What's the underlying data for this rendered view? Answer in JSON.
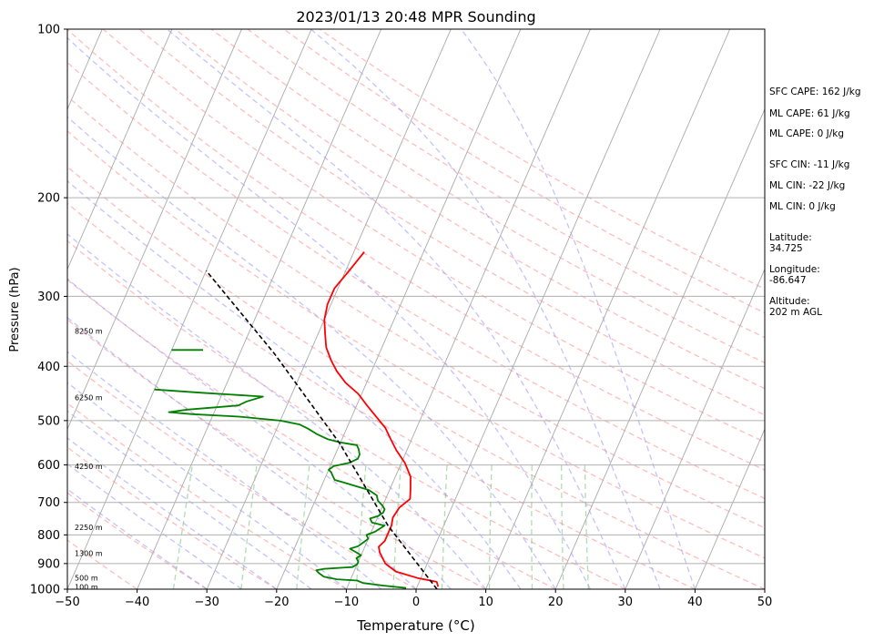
{
  "chart_data": {
    "type": "line",
    "title": "2023/01/13 20:48 MPR Sounding",
    "xlabel": "Temperature (°C)",
    "ylabel": "Pressure (hPa)",
    "xlim": [
      -50,
      50
    ],
    "ylim": [
      1000,
      100
    ],
    "y_scale": "log",
    "xticks": [
      "−50",
      "−40",
      "−30",
      "−20",
      "−10",
      "0",
      "10",
      "20",
      "30",
      "40",
      "50"
    ],
    "yticks": [
      "100",
      "200",
      "300",
      "400",
      "500",
      "600",
      "700",
      "800",
      "900",
      "1000"
    ],
    "height_labels": [
      {
        "p": 990,
        "text": "100 m"
      },
      {
        "p": 955,
        "text": "500 m"
      },
      {
        "p": 862,
        "text": "1300 m"
      },
      {
        "p": 775,
        "text": "2250 m"
      },
      {
        "p": 603,
        "text": "4250 m"
      },
      {
        "p": 455,
        "text": "6250 m"
      },
      {
        "p": 346,
        "text": "8250 m"
      }
    ],
    "series": [
      {
        "color": "#ff0000",
        "points": [
          [
            3.0,
            990
          ],
          [
            2.5,
            970
          ],
          [
            -0.5,
            955
          ],
          [
            -4.0,
            930
          ],
          [
            -6.0,
            900
          ],
          [
            -7.5,
            860
          ],
          [
            -8.0,
            840
          ],
          [
            -7.5,
            820
          ],
          [
            -7.5,
            790
          ],
          [
            -7.5,
            770
          ],
          [
            -7.8,
            745
          ],
          [
            -7.5,
            715
          ],
          [
            -6.5,
            690
          ],
          [
            -7.0,
            665
          ],
          [
            -7.8,
            630
          ],
          [
            -9.5,
            595
          ],
          [
            -11.5,
            565
          ],
          [
            -13.0,
            540
          ],
          [
            -14.5,
            515
          ],
          [
            -16.5,
            492
          ],
          [
            -18.5,
            470
          ],
          [
            -20.5,
            448
          ],
          [
            -23.0,
            428
          ],
          [
            -25.0,
            408
          ],
          [
            -26.5,
            390
          ],
          [
            -28.0,
            370
          ],
          [
            -29.0,
            350
          ],
          [
            -30.0,
            330
          ],
          [
            -30.5,
            310
          ],
          [
            -30.5,
            290
          ],
          [
            -29.5,
            270
          ],
          [
            -28.5,
            250
          ]
        ]
      },
      {
        "color": "#008000",
        "points": [
          [
            -1.5,
            995
          ],
          [
            -5.0,
            985
          ],
          [
            -8.0,
            975
          ],
          [
            -9.0,
            965
          ],
          [
            -12.0,
            960
          ],
          [
            -14.0,
            950
          ],
          [
            -15.0,
            935
          ],
          [
            -15.5,
            925
          ],
          [
            -14.5,
            920
          ],
          [
            -10.5,
            913
          ],
          [
            -10.0,
            903
          ],
          [
            -10.0,
            893
          ],
          [
            -10.5,
            880
          ],
          [
            -10.0,
            870
          ],
          [
            -11.0,
            858
          ],
          [
            -12.0,
            847
          ],
          [
            -11.0,
            838
          ],
          [
            -10.5,
            826
          ],
          [
            -10.0,
            813
          ],
          [
            -10.5,
            800
          ],
          [
            -9.5,
            790
          ],
          [
            -9.0,
            780
          ],
          [
            -8.5,
            770
          ],
          [
            -9.5,
            765
          ],
          [
            -10.5,
            760
          ],
          [
            -11.0,
            748
          ],
          [
            -10.0,
            740
          ],
          [
            -9.5,
            730
          ],
          [
            -9.5,
            720
          ],
          [
            -10.0,
            710
          ],
          [
            -11.0,
            695
          ],
          [
            -11.5,
            680
          ],
          [
            -13.0,
            665
          ],
          [
            -15.0,
            655
          ],
          [
            -17.0,
            645
          ],
          [
            -18.5,
            638
          ],
          [
            -19.0,
            628
          ],
          [
            -19.5,
            618
          ],
          [
            -20.0,
            612
          ],
          [
            -19.5,
            603
          ],
          [
            -17.5,
            595
          ],
          [
            -16.5,
            585
          ],
          [
            -16.5,
            575
          ],
          [
            -17.0,
            562
          ],
          [
            -17.5,
            553
          ],
          [
            -20.0,
            547
          ],
          [
            -22.0,
            540
          ],
          [
            -24.0,
            528
          ],
          [
            -25.5,
            517
          ],
          [
            -27.0,
            508
          ],
          [
            -30.0,
            500
          ],
          [
            -36.0,
            492
          ],
          [
            -43.0,
            487
          ],
          [
            -46.5,
            483
          ],
          [
            -44.0,
            478
          ],
          [
            -37.0,
            470
          ],
          [
            -36.0,
            462
          ],
          [
            -34.0,
            453
          ],
          [
            -43.0,
            446
          ],
          [
            -50.0,
            440
          ]
        ]
      },
      {
        "color": "#008000",
        "points": [
          [
            -50.0,
            374
          ],
          [
            -45.5,
            374
          ]
        ]
      },
      {
        "color": "#000000",
        "dashed": true,
        "points": [
          [
            3.0,
            1000
          ],
          [
            -8.0,
            770
          ],
          [
            -20.0,
            550
          ],
          [
            -35.0,
            380
          ],
          [
            -50.0,
            270
          ]
        ]
      }
    ]
  },
  "annotations": [
    "SFC CAPE: 162 J/kg",
    "ML CAPE: 61 J/kg",
    "ML CAPE: 0 J/kg",
    "SFC CIN: -11 J/kg",
    "ML CIN: -22 J/kg",
    "ML CIN: 0 J/kg",
    "Latitude:\n34.725",
    "Longitude:\n-86.647",
    "Altitude:\n202 m AGL"
  ]
}
